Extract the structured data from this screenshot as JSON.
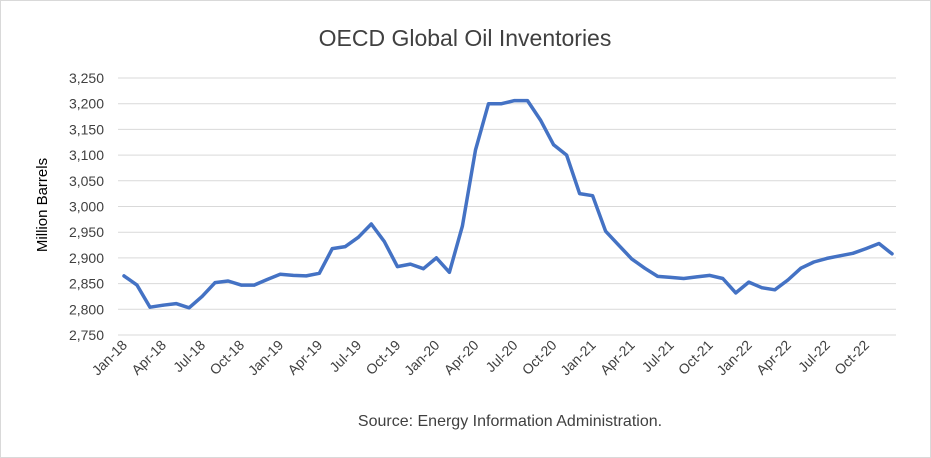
{
  "chart_data": {
    "type": "line",
    "title": "OECD Global Oil Inventories",
    "xlabel": "",
    "ylabel": "Million Barrels",
    "source": "Source: Energy Information Administration.",
    "ylim": [
      2750,
      3250
    ],
    "yticks": [
      "2,750",
      "2,800",
      "2,850",
      "2,900",
      "2,950",
      "3,000",
      "3,050",
      "3,100",
      "3,150",
      "3,200",
      "3,250"
    ],
    "ytick_values": [
      2750,
      2800,
      2850,
      2900,
      2950,
      3000,
      3050,
      3100,
      3150,
      3200,
      3250
    ],
    "xtick_labels": [
      {
        "label": "Jan-18",
        "index": 0
      },
      {
        "label": "Apr-18",
        "index": 3
      },
      {
        "label": "Jul-18",
        "index": 6
      },
      {
        "label": "Oct-18",
        "index": 9
      },
      {
        "label": "Jan-19",
        "index": 12
      },
      {
        "label": "Apr-19",
        "index": 15
      },
      {
        "label": "Jul-19",
        "index": 18
      },
      {
        "label": "Oct-19",
        "index": 21
      },
      {
        "label": "Jan-20",
        "index": 24
      },
      {
        "label": "Apr-20",
        "index": 27
      },
      {
        "label": "Jul-20",
        "index": 30
      },
      {
        "label": "Oct-20",
        "index": 33
      },
      {
        "label": "Jan-21",
        "index": 36
      },
      {
        "label": "Apr-21",
        "index": 39
      },
      {
        "label": "Jul-21",
        "index": 42
      },
      {
        "label": "Oct-21",
        "index": 45
      },
      {
        "label": "Jan-22",
        "index": 48
      },
      {
        "label": "Apr-22",
        "index": 51
      },
      {
        "label": "Jul-22",
        "index": 54
      },
      {
        "label": "Oct-22",
        "index": 57
      }
    ],
    "grid": true,
    "legend": "none",
    "series": [
      {
        "color": "#4472c4",
        "values": [
          2865,
          2847,
          2804,
          2808,
          2811,
          2803,
          2825,
          2852,
          2855,
          2847,
          2847,
          2858,
          2868,
          2866,
          2865,
          2870,
          2918,
          2922,
          2940,
          2966,
          2932,
          2883,
          2888,
          2879,
          2900,
          2872,
          2962,
          3110,
          3200,
          3200,
          3206,
          3206,
          3168,
          3120,
          3100,
          3025,
          3021,
          2952,
          2925,
          2898,
          2880,
          2864,
          2862,
          2860,
          2863,
          2866,
          2860,
          2832,
          2853,
          2842,
          2838,
          2857,
          2880,
          2892,
          2899,
          2904,
          2909,
          2918,
          2928,
          2908
        ]
      }
    ]
  }
}
